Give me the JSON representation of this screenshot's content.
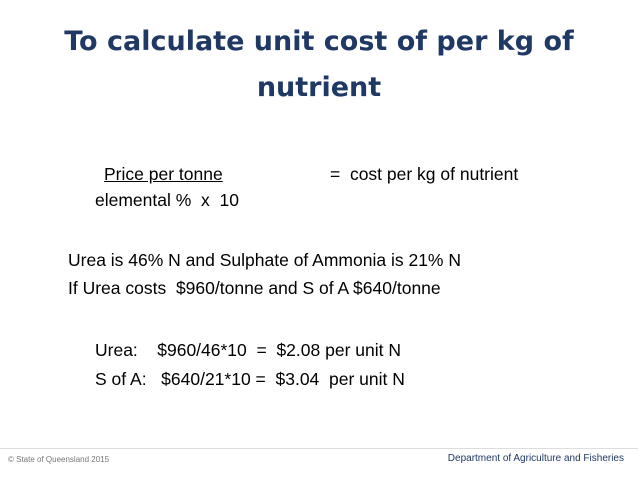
{
  "title": {
    "line1": "To calculate unit cost of per kg of",
    "line2": "nutrient"
  },
  "formula": {
    "numerator": "Price per tonne",
    "equals": "=  cost per kg of nutrient",
    "denominator": "elemental %  x  10"
  },
  "facts": [
    "Urea is 46% N and Sulphate of Ammonia is 21% N",
    "If Urea costs  $960/tonne and S of A $640/tonne"
  ],
  "calculations": [
    "Urea:    $960/46*10  =  $2.08 per unit N",
    "S of A:   $640/21*10 =  $3.04  per unit N"
  ],
  "footer": {
    "left": "© State of Queensland 2015",
    "right": "Department of Agriculture and Fisheries"
  }
}
